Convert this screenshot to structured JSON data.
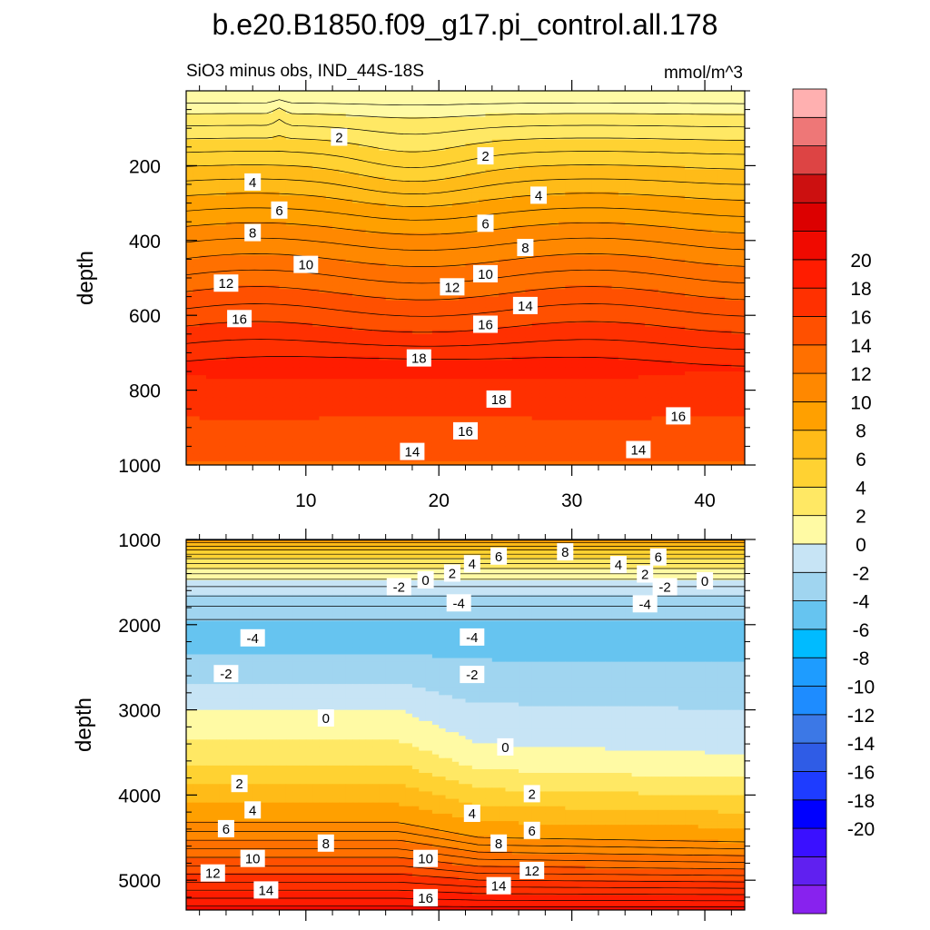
{
  "chart_data": {
    "type": "contour",
    "title": "b.e20.B1850.f09_g17.pi_control.all.178",
    "subtitle_left": "SiO3 minus obs, IND_44S-18S",
    "units": "mmol/m^3",
    "x_range": [
      1,
      43
    ],
    "x_ticks": [
      10,
      20,
      30,
      40
    ],
    "x_tick_labels": [
      "10",
      "20",
      "30",
      "40"
    ],
    "colorbar": {
      "levels": [
        -22,
        -20,
        -18,
        -16,
        -14,
        -12,
        -10,
        -8,
        -6,
        -4,
        -2,
        0,
        2,
        4,
        6,
        8,
        10,
        12,
        14,
        16,
        18,
        20,
        22
      ],
      "tick_values": [
        20,
        18,
        16,
        14,
        12,
        10,
        8,
        6,
        4,
        2,
        0,
        -2,
        -4,
        -6,
        -8,
        -10,
        -12,
        -14,
        -16,
        -18,
        -20
      ],
      "tick_labels": [
        "20",
        "18",
        "16",
        "14",
        "12",
        "10",
        "8",
        "6",
        "4",
        "2",
        "0",
        "-2",
        "-4",
        "-6",
        "-8",
        "-10",
        "-12",
        "-14",
        "-16",
        "-18",
        "-20"
      ],
      "colors": [
        "#8822ee",
        "#6020f0",
        "#3a10ff",
        "#0000ff",
        "#1e3cff",
        "#2f5ce6",
        "#3c78e6",
        "#1e8cff",
        "#1e9cff",
        "#00bbff",
        "#66c4f0",
        "#a0d5f0",
        "#c7e4f5",
        "#fffaa4",
        "#ffe864",
        "#ffd232",
        "#ffbb18",
        "#ffa000",
        "#ff8800",
        "#ff7000",
        "#ff5000",
        "#ff3000",
        "#ff1c00",
        "#f00a00",
        "#dc0000",
        "#cc1010",
        "#dd4444",
        "#ee7777",
        "#ffb0b0"
      ]
    },
    "panels": [
      {
        "name": "upper",
        "ylabel": "depth",
        "ylim": [
          0,
          1000
        ],
        "y_ticks": [
          200,
          400,
          600,
          800,
          1000
        ],
        "y_tick_labels": [
          "200",
          "400",
          "600",
          "800",
          "1000"
        ],
        "contour_labels": [
          {
            "text": "2",
            "x": 12.5,
            "y": 125
          },
          {
            "text": "2",
            "x": 23.5,
            "y": 175
          },
          {
            "text": "4",
            "x": 6.0,
            "y": 245
          },
          {
            "text": "4",
            "x": 27.5,
            "y": 280
          },
          {
            "text": "6",
            "x": 8.0,
            "y": 320
          },
          {
            "text": "6",
            "x": 23.5,
            "y": 355
          },
          {
            "text": "8",
            "x": 6.0,
            "y": 380
          },
          {
            "text": "8",
            "x": 26.5,
            "y": 420
          },
          {
            "text": "10",
            "x": 10.0,
            "y": 465
          },
          {
            "text": "10",
            "x": 23.5,
            "y": 490
          },
          {
            "text": "12",
            "x": 4.0,
            "y": 515
          },
          {
            "text": "12",
            "x": 21.0,
            "y": 525
          },
          {
            "text": "14",
            "x": 26.5,
            "y": 575
          },
          {
            "text": "16",
            "x": 5.0,
            "y": 610
          },
          {
            "text": "16",
            "x": 23.5,
            "y": 625
          },
          {
            "text": "18",
            "x": 18.5,
            "y": 715
          },
          {
            "text": "18",
            "x": 24.5,
            "y": 825
          },
          {
            "text": "16",
            "x": 22.0,
            "y": 910
          },
          {
            "text": "16",
            "x": 38.0,
            "y": 870
          },
          {
            "text": "14",
            "x": 18.0,
            "y": 965
          },
          {
            "text": "14",
            "x": 35.0,
            "y": 960
          }
        ]
      },
      {
        "name": "lower",
        "ylabel": "depth",
        "ylim": [
          1000,
          5350
        ],
        "y_ticks": [
          1000,
          2000,
          3000,
          4000,
          5000
        ],
        "y_tick_labels": [
          "1000",
          "2000",
          "3000",
          "4000",
          "5000"
        ],
        "contour_labels": [
          {
            "text": "6",
            "x": 24.5,
            "y": 1200
          },
          {
            "text": "8",
            "x": 29.5,
            "y": 1150
          },
          {
            "text": "6",
            "x": 36.5,
            "y": 1210
          },
          {
            "text": "4",
            "x": 22.5,
            "y": 1290
          },
          {
            "text": "4",
            "x": 33.5,
            "y": 1300
          },
          {
            "text": "2",
            "x": 21.0,
            "y": 1400
          },
          {
            "text": "2",
            "x": 35.5,
            "y": 1410
          },
          {
            "text": "0",
            "x": 19.0,
            "y": 1480
          },
          {
            "text": "0",
            "x": 40.0,
            "y": 1490
          },
          {
            "text": "-2",
            "x": 17.0,
            "y": 1560
          },
          {
            "text": "-2",
            "x": 37.0,
            "y": 1560
          },
          {
            "text": "-4",
            "x": 21.5,
            "y": 1750
          },
          {
            "text": "-4",
            "x": 35.5,
            "y": 1760
          },
          {
            "text": "-4",
            "x": 6.0,
            "y": 2160
          },
          {
            "text": "-4",
            "x": 22.5,
            "y": 2150
          },
          {
            "text": "-2",
            "x": 4.0,
            "y": 2580
          },
          {
            "text": "-2",
            "x": 22.5,
            "y": 2590
          },
          {
            "text": "0",
            "x": 11.5,
            "y": 3100
          },
          {
            "text": "0",
            "x": 25.0,
            "y": 3440
          },
          {
            "text": "2",
            "x": 5.0,
            "y": 3870
          },
          {
            "text": "2",
            "x": 27.0,
            "y": 3990
          },
          {
            "text": "4",
            "x": 6.0,
            "y": 4180
          },
          {
            "text": "4",
            "x": 22.5,
            "y": 4220
          },
          {
            "text": "6",
            "x": 4.0,
            "y": 4400
          },
          {
            "text": "6",
            "x": 27.0,
            "y": 4420
          },
          {
            "text": "8",
            "x": 11.5,
            "y": 4570
          },
          {
            "text": "8",
            "x": 24.5,
            "y": 4570
          },
          {
            "text": "10",
            "x": 6.0,
            "y": 4750
          },
          {
            "text": "10",
            "x": 19.0,
            "y": 4750
          },
          {
            "text": "12",
            "x": 3.0,
            "y": 4920
          },
          {
            "text": "12",
            "x": 27.0,
            "y": 4890
          },
          {
            "text": "14",
            "x": 7.0,
            "y": 5120
          },
          {
            "text": "14",
            "x": 24.5,
            "y": 5070
          },
          {
            "text": "16",
            "x": 19.0,
            "y": 5210
          }
        ]
      }
    ]
  },
  "colors": {
    "contour_line": "#000000",
    "label_bg": "#ffffff",
    "frame": "#000000"
  }
}
